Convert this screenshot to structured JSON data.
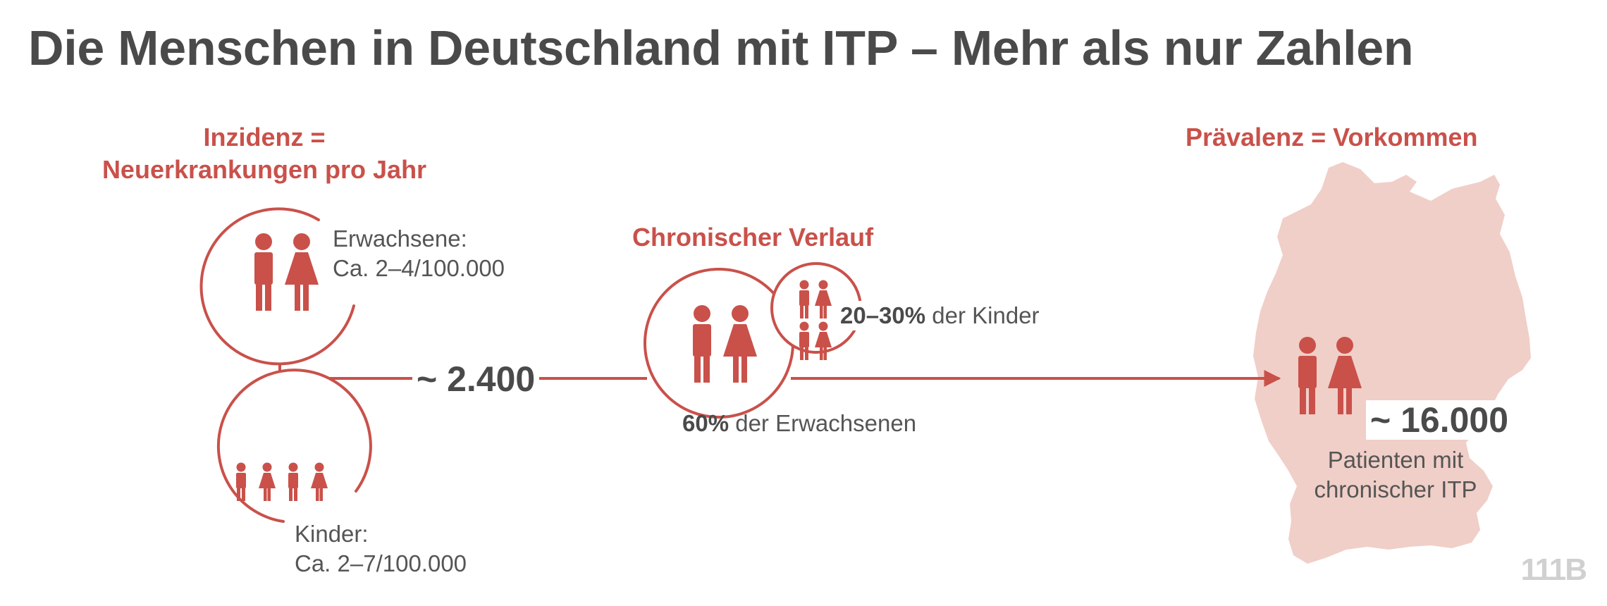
{
  "title": "Die Menschen in Deutschland mit ITP – Mehr als nur Zahlen",
  "incidence": {
    "heading_line1": "Inzidenz =",
    "heading_line2": "Neuerkrankungen pro Jahr",
    "adults_label_line1": "Erwachsene:",
    "adults_label_line2": "Ca. 2–4/100.000",
    "children_label_line1": "Kinder:",
    "children_label_line2": "Ca. 2–7/100.000",
    "total": "~ 2.400"
  },
  "chronic": {
    "heading": "Chronischer Verlauf",
    "children_percent": "20–30%",
    "children_text": " der Kinder",
    "adults_percent": "60%",
    "adults_text": " der Erwachsenen"
  },
  "prevalence": {
    "heading": "Prävalenz = Vorkommen",
    "total": "~ 16.000",
    "label_line1": "Patienten mit",
    "label_line2": "chronischer ITP"
  },
  "watermark": "111B",
  "colors": {
    "accent": "#c9514a",
    "text": "#4a4a4a",
    "map_fill": "#f0cfc8"
  }
}
